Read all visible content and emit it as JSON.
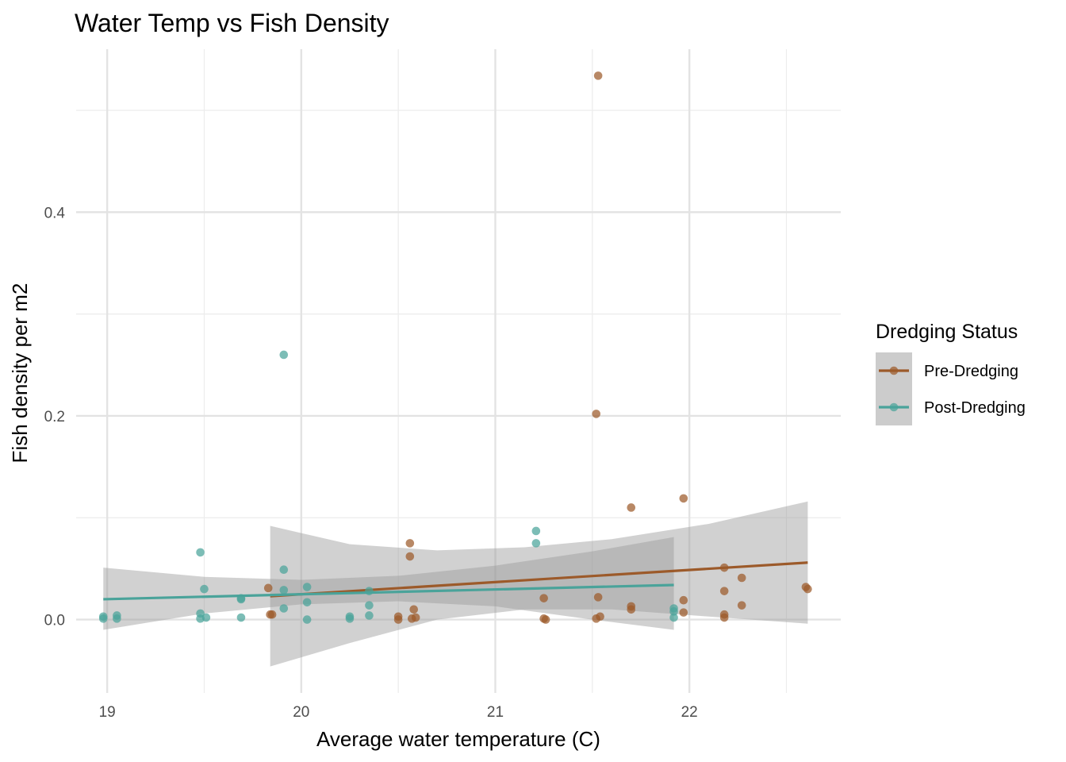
{
  "chart_data": {
    "type": "scatter",
    "title": "Water Temp vs Fish Density",
    "xlabel": "Average water temperature (C)",
    "ylabel": "Fish density per m2",
    "xlim": [
      18.84,
      22.78
    ],
    "ylim": [
      -0.072,
      0.56
    ],
    "x_ticks": [
      19,
      20,
      21,
      22
    ],
    "x_tick_labels": [
      "19",
      "20",
      "21",
      "22"
    ],
    "y_ticks": [
      0.0,
      0.2,
      0.4
    ],
    "y_tick_labels": [
      "0.0",
      "0.2",
      "0.4"
    ],
    "grid": true,
    "legend": {
      "title": "Dredging Status",
      "placement": "right",
      "entries": [
        "Pre-Dredging",
        "Post-Dredging"
      ]
    },
    "series": [
      {
        "name": "Pre-Dredging",
        "color": "#9c5a2a",
        "points": [
          [
            21.53,
            0.534
          ],
          [
            21.52,
            0.202
          ],
          [
            21.7,
            0.11
          ],
          [
            21.97,
            0.119
          ],
          [
            20.56,
            0.075
          ],
          [
            20.56,
            0.062
          ],
          [
            19.83,
            0.031
          ],
          [
            19.84,
            0.005
          ],
          [
            19.85,
            0.005
          ],
          [
            20.5,
            0.003
          ],
          [
            20.5,
            0.0
          ],
          [
            20.58,
            0.01
          ],
          [
            20.57,
            0.001
          ],
          [
            20.59,
            0.002
          ],
          [
            21.25,
            0.021
          ],
          [
            21.25,
            0.001
          ],
          [
            21.26,
            0.0
          ],
          [
            21.53,
            0.022
          ],
          [
            21.52,
            0.001
          ],
          [
            21.54,
            0.003
          ],
          [
            21.7,
            0.013
          ],
          [
            21.7,
            0.01
          ],
          [
            21.97,
            0.019
          ],
          [
            21.97,
            0.007
          ],
          [
            22.18,
            0.051
          ],
          [
            22.18,
            0.028
          ],
          [
            22.18,
            0.005
          ],
          [
            22.18,
            0.002
          ],
          [
            22.27,
            0.041
          ],
          [
            22.27,
            0.014
          ],
          [
            22.6,
            0.032
          ],
          [
            22.61,
            0.03
          ]
        ],
        "fit": {
          "x": [
            19.84,
            22.61
          ],
          "y": [
            0.023,
            0.056
          ]
        },
        "band": {
          "x": [
            19.84,
            20.25,
            20.7,
            21.15,
            21.6,
            22.1,
            22.61
          ],
          "upper": [
            0.092,
            0.074,
            0.068,
            0.071,
            0.079,
            0.094,
            0.116
          ],
          "lower": [
            -0.046,
            -0.023,
            0.0,
            0.01,
            0.01,
            0.003,
            -0.004
          ]
        }
      },
      {
        "name": "Post-Dredging",
        "color": "#4aa39a",
        "points": [
          [
            19.91,
            0.26
          ],
          [
            19.48,
            0.066
          ],
          [
            19.5,
            0.03
          ],
          [
            19.48,
            0.006
          ],
          [
            19.48,
            0.001
          ],
          [
            19.51,
            0.002
          ],
          [
            19.69,
            0.021
          ],
          [
            19.69,
            0.02
          ],
          [
            19.69,
            0.002
          ],
          [
            19.91,
            0.049
          ],
          [
            19.91,
            0.029
          ],
          [
            19.91,
            0.011
          ],
          [
            20.03,
            0.032
          ],
          [
            20.03,
            0.017
          ],
          [
            20.03,
            0.0
          ],
          [
            20.25,
            0.003
          ],
          [
            20.25,
            0.001
          ],
          [
            20.35,
            0.028
          ],
          [
            20.35,
            0.014
          ],
          [
            20.35,
            0.004
          ],
          [
            21.21,
            0.087
          ],
          [
            21.21,
            0.075
          ],
          [
            21.92,
            0.011
          ],
          [
            21.92,
            0.008
          ],
          [
            21.92,
            0.002
          ],
          [
            18.98,
            0.003
          ],
          [
            18.98,
            0.001
          ],
          [
            19.05,
            0.004
          ],
          [
            19.05,
            0.001
          ]
        ],
        "fit": {
          "x": [
            18.98,
            21.92
          ],
          "y": [
            0.02,
            0.034
          ]
        },
        "band": {
          "x": [
            18.98,
            19.5,
            20.0,
            20.5,
            21.0,
            21.5,
            21.92
          ],
          "upper": [
            0.051,
            0.042,
            0.039,
            0.043,
            0.053,
            0.067,
            0.081
          ],
          "lower": [
            -0.01,
            0.006,
            0.015,
            0.018,
            0.013,
            0.0,
            -0.01
          ]
        }
      }
    ]
  }
}
